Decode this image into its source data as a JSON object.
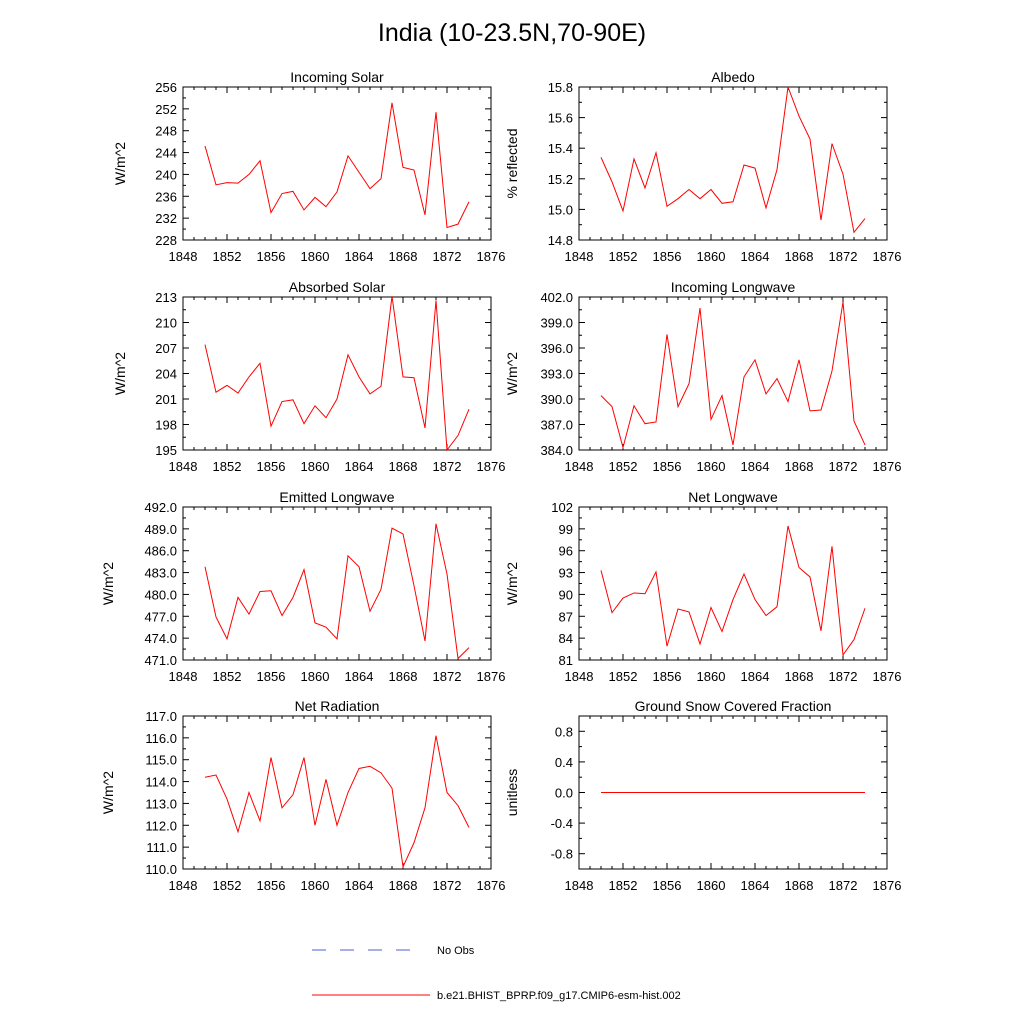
{
  "title": "India (10-23.5N,70-90E)",
  "colors": {
    "model": "#ff0000",
    "obs": "#4f5fd0",
    "axis": "#000000"
  },
  "legend": {
    "obs_label": "No Obs",
    "model_label": "b.e21.BHIST_BPRP.f09_g17.CMIP6-esm-hist.002"
  },
  "chart_data": [
    {
      "type": "line",
      "title": "Incoming Solar",
      "xlabel": "",
      "ylabel": "W/m^2",
      "xlim": [
        1848,
        1876
      ],
      "xticks": [
        "1848",
        "1852",
        "1856",
        "1860",
        "1864",
        "1868",
        "1872",
        "1876"
      ],
      "ylim": [
        228,
        256
      ],
      "yticks": [
        "228",
        "232",
        "236",
        "240",
        "244",
        "248",
        "252",
        "256"
      ],
      "x": [
        1850,
        1851,
        1852,
        1853,
        1854,
        1855,
        1856,
        1857,
        1858,
        1859,
        1860,
        1861,
        1862,
        1863,
        1864,
        1865,
        1866,
        1867,
        1868,
        1869,
        1870,
        1871,
        1872,
        1873,
        1874
      ],
      "series": [
        {
          "name": "b.e21.BHIST_BPRP.f09_g17.CMIP6-esm-hist.002",
          "values": [
            245.2,
            238.1,
            238.5,
            238.4,
            240.0,
            242.5,
            233.0,
            236.5,
            236.9,
            233.5,
            235.8,
            234.1,
            236.8,
            243.4,
            240.4,
            237.4,
            239.2,
            253.1,
            241.3,
            240.8,
            232.6,
            251.4,
            230.3,
            230.9,
            235.0
          ]
        }
      ]
    },
    {
      "type": "line",
      "title": "Albedo",
      "xlabel": "",
      "ylabel": "% reflected",
      "xlim": [
        1848,
        1876
      ],
      "xticks": [
        "1848",
        "1852",
        "1856",
        "1860",
        "1864",
        "1868",
        "1872",
        "1876"
      ],
      "ylim": [
        14.8,
        15.8
      ],
      "yticks": [
        "14.8",
        "15.0",
        "15.2",
        "15.4",
        "15.6",
        "15.8"
      ],
      "x": [
        1850,
        1851,
        1852,
        1853,
        1854,
        1855,
        1856,
        1857,
        1858,
        1859,
        1860,
        1861,
        1862,
        1863,
        1864,
        1865,
        1866,
        1867,
        1868,
        1869,
        1870,
        1871,
        1872,
        1873,
        1874
      ],
      "series": [
        {
          "name": "b.e21.BHIST_BPRP.f09_g17.CMIP6-esm-hist.002",
          "values": [
            15.34,
            15.18,
            14.99,
            15.33,
            15.14,
            15.37,
            15.02,
            15.07,
            15.13,
            15.07,
            15.13,
            15.04,
            15.05,
            15.29,
            15.27,
            15.01,
            15.26,
            15.8,
            15.61,
            15.46,
            14.93,
            15.43,
            15.23,
            14.85,
            14.94
          ]
        }
      ]
    },
    {
      "type": "line",
      "title": "Absorbed Solar",
      "xlabel": "",
      "ylabel": "W/m^2",
      "xlim": [
        1848,
        1876
      ],
      "xticks": [
        "1848",
        "1852",
        "1856",
        "1860",
        "1864",
        "1868",
        "1872",
        "1876"
      ],
      "ylim": [
        195,
        213
      ],
      "yticks": [
        "195",
        "198",
        "201",
        "204",
        "207",
        "210",
        "213"
      ],
      "x": [
        1850,
        1851,
        1852,
        1853,
        1854,
        1855,
        1856,
        1857,
        1858,
        1859,
        1860,
        1861,
        1862,
        1863,
        1864,
        1865,
        1866,
        1867,
        1868,
        1869,
        1870,
        1871,
        1872,
        1873,
        1874
      ],
      "series": [
        {
          "name": "b.e21.BHIST_BPRP.f09_g17.CMIP6-esm-hist.002",
          "values": [
            207.4,
            201.8,
            202.6,
            201.7,
            203.6,
            205.2,
            197.8,
            200.7,
            200.9,
            198.1,
            200.2,
            198.8,
            201.0,
            206.2,
            203.6,
            201.6,
            202.5,
            213.1,
            203.6,
            203.5,
            197.6,
            212.6,
            195.0,
            196.7,
            199.8
          ]
        }
      ]
    },
    {
      "type": "line",
      "title": "Incoming Longwave",
      "xlabel": "",
      "ylabel": "W/m^2",
      "xlim": [
        1848,
        1876
      ],
      "xticks": [
        "1848",
        "1852",
        "1856",
        "1860",
        "1864",
        "1868",
        "1872",
        "1876"
      ],
      "ylim": [
        384.0,
        402.0
      ],
      "yticks": [
        "384.0",
        "387.0",
        "390.0",
        "393.0",
        "396.0",
        "399.0",
        "402.0"
      ],
      "x": [
        1850,
        1851,
        1852,
        1853,
        1854,
        1855,
        1856,
        1857,
        1858,
        1859,
        1860,
        1861,
        1862,
        1863,
        1864,
        1865,
        1866,
        1867,
        1868,
        1869,
        1870,
        1871,
        1872,
        1873,
        1874
      ],
      "series": [
        {
          "name": "b.e21.BHIST_BPRP.f09_g17.CMIP6-esm-hist.002",
          "values": [
            390.4,
            389.1,
            384.3,
            389.2,
            387.1,
            387.3,
            397.6,
            389.1,
            391.8,
            400.7,
            387.6,
            390.4,
            384.6,
            392.6,
            394.6,
            390.6,
            392.4,
            389.7,
            394.6,
            388.6,
            388.7,
            393.3,
            401.4,
            387.4,
            384.6
          ]
        }
      ]
    },
    {
      "type": "line",
      "title": "Emitted Longwave",
      "xlabel": "",
      "ylabel": "W/m^2",
      "xlim": [
        1848,
        1876
      ],
      "xticks": [
        "1848",
        "1852",
        "1856",
        "1860",
        "1864",
        "1868",
        "1872",
        "1876"
      ],
      "ylim": [
        471.0,
        492.0
      ],
      "yticks": [
        "471.0",
        "474.0",
        "477.0",
        "480.0",
        "483.0",
        "486.0",
        "489.0",
        "492.0"
      ],
      "x": [
        1850,
        1851,
        1852,
        1853,
        1854,
        1855,
        1856,
        1857,
        1858,
        1859,
        1860,
        1861,
        1862,
        1863,
        1864,
        1865,
        1866,
        1867,
        1868,
        1869,
        1870,
        1871,
        1872,
        1873,
        1874
      ],
      "series": [
        {
          "name": "b.e21.BHIST_BPRP.f09_g17.CMIP6-esm-hist.002",
          "values": [
            483.8,
            476.9,
            473.9,
            479.6,
            477.3,
            480.4,
            480.5,
            477.1,
            479.6,
            483.4,
            476.1,
            475.5,
            473.9,
            485.3,
            483.8,
            477.7,
            480.7,
            489.1,
            488.3,
            481.2,
            473.6,
            489.7,
            482.8,
            471.2,
            472.7
          ]
        }
      ]
    },
    {
      "type": "line",
      "title": "Net Longwave",
      "xlabel": "",
      "ylabel": "W/m^2",
      "xlim": [
        1848,
        1876
      ],
      "xticks": [
        "1848",
        "1852",
        "1856",
        "1860",
        "1864",
        "1868",
        "1872",
        "1876"
      ],
      "ylim": [
        81,
        102
      ],
      "yticks": [
        "81",
        "84",
        "87",
        "90",
        "93",
        "96",
        "99",
        "102"
      ],
      "x": [
        1850,
        1851,
        1852,
        1853,
        1854,
        1855,
        1856,
        1857,
        1858,
        1859,
        1860,
        1861,
        1862,
        1863,
        1864,
        1865,
        1866,
        1867,
        1868,
        1869,
        1870,
        1871,
        1872,
        1873,
        1874
      ],
      "series": [
        {
          "name": "b.e21.BHIST_BPRP.f09_g17.CMIP6-esm-hist.002",
          "values": [
            93.3,
            87.5,
            89.5,
            90.2,
            90.1,
            93.1,
            82.9,
            88.0,
            87.6,
            83.2,
            88.2,
            84.9,
            89.3,
            92.8,
            89.3,
            87.1,
            88.3,
            99.4,
            93.7,
            92.4,
            85.0,
            96.6,
            81.7,
            83.8,
            88.1
          ]
        }
      ]
    },
    {
      "type": "line",
      "title": "Net Radiation",
      "xlabel": "",
      "ylabel": "W/m^2",
      "xlim": [
        1848,
        1876
      ],
      "xticks": [
        "1848",
        "1852",
        "1856",
        "1860",
        "1864",
        "1868",
        "1872",
        "1876"
      ],
      "ylim": [
        110.0,
        117.0
      ],
      "yticks": [
        "110.0",
        "111.0",
        "112.0",
        "113.0",
        "114.0",
        "115.0",
        "116.0",
        "117.0"
      ],
      "x": [
        1850,
        1851,
        1852,
        1853,
        1854,
        1855,
        1856,
        1857,
        1858,
        1859,
        1860,
        1861,
        1862,
        1863,
        1864,
        1865,
        1866,
        1867,
        1868,
        1869,
        1870,
        1871,
        1872,
        1873,
        1874
      ],
      "series": [
        {
          "name": "b.e21.BHIST_BPRP.f09_g17.CMIP6-esm-hist.002",
          "values": [
            114.2,
            114.3,
            113.2,
            111.7,
            113.5,
            112.2,
            115.1,
            112.8,
            113.4,
            115.1,
            112.0,
            114.1,
            112.0,
            113.5,
            114.6,
            114.7,
            114.4,
            113.7,
            110.1,
            111.2,
            112.8,
            116.1,
            113.5,
            112.9,
            111.9
          ]
        }
      ]
    },
    {
      "type": "line",
      "title": "Ground Snow Covered Fraction",
      "xlabel": "",
      "ylabel": "unitless",
      "xlim": [
        1848,
        1876
      ],
      "xticks": [
        "1848",
        "1852",
        "1856",
        "1860",
        "1864",
        "1868",
        "1872",
        "1876"
      ],
      "ylim": [
        -1.0,
        1.0
      ],
      "yticks": [
        "-0.8",
        "-0.4",
        "0.0",
        "0.4",
        "0.8"
      ],
      "x": [
        1850,
        1851,
        1852,
        1853,
        1854,
        1855,
        1856,
        1857,
        1858,
        1859,
        1860,
        1861,
        1862,
        1863,
        1864,
        1865,
        1866,
        1867,
        1868,
        1869,
        1870,
        1871,
        1872,
        1873,
        1874
      ],
      "series": [
        {
          "name": "b.e21.BHIST_BPRP.f09_g17.CMIP6-esm-hist.002",
          "values": [
            0,
            0,
            0,
            0,
            0,
            0,
            0,
            0,
            0,
            0,
            0,
            0,
            0,
            0,
            0,
            0,
            0,
            0,
            0,
            0,
            0,
            0,
            0,
            0,
            0
          ]
        }
      ]
    }
  ]
}
